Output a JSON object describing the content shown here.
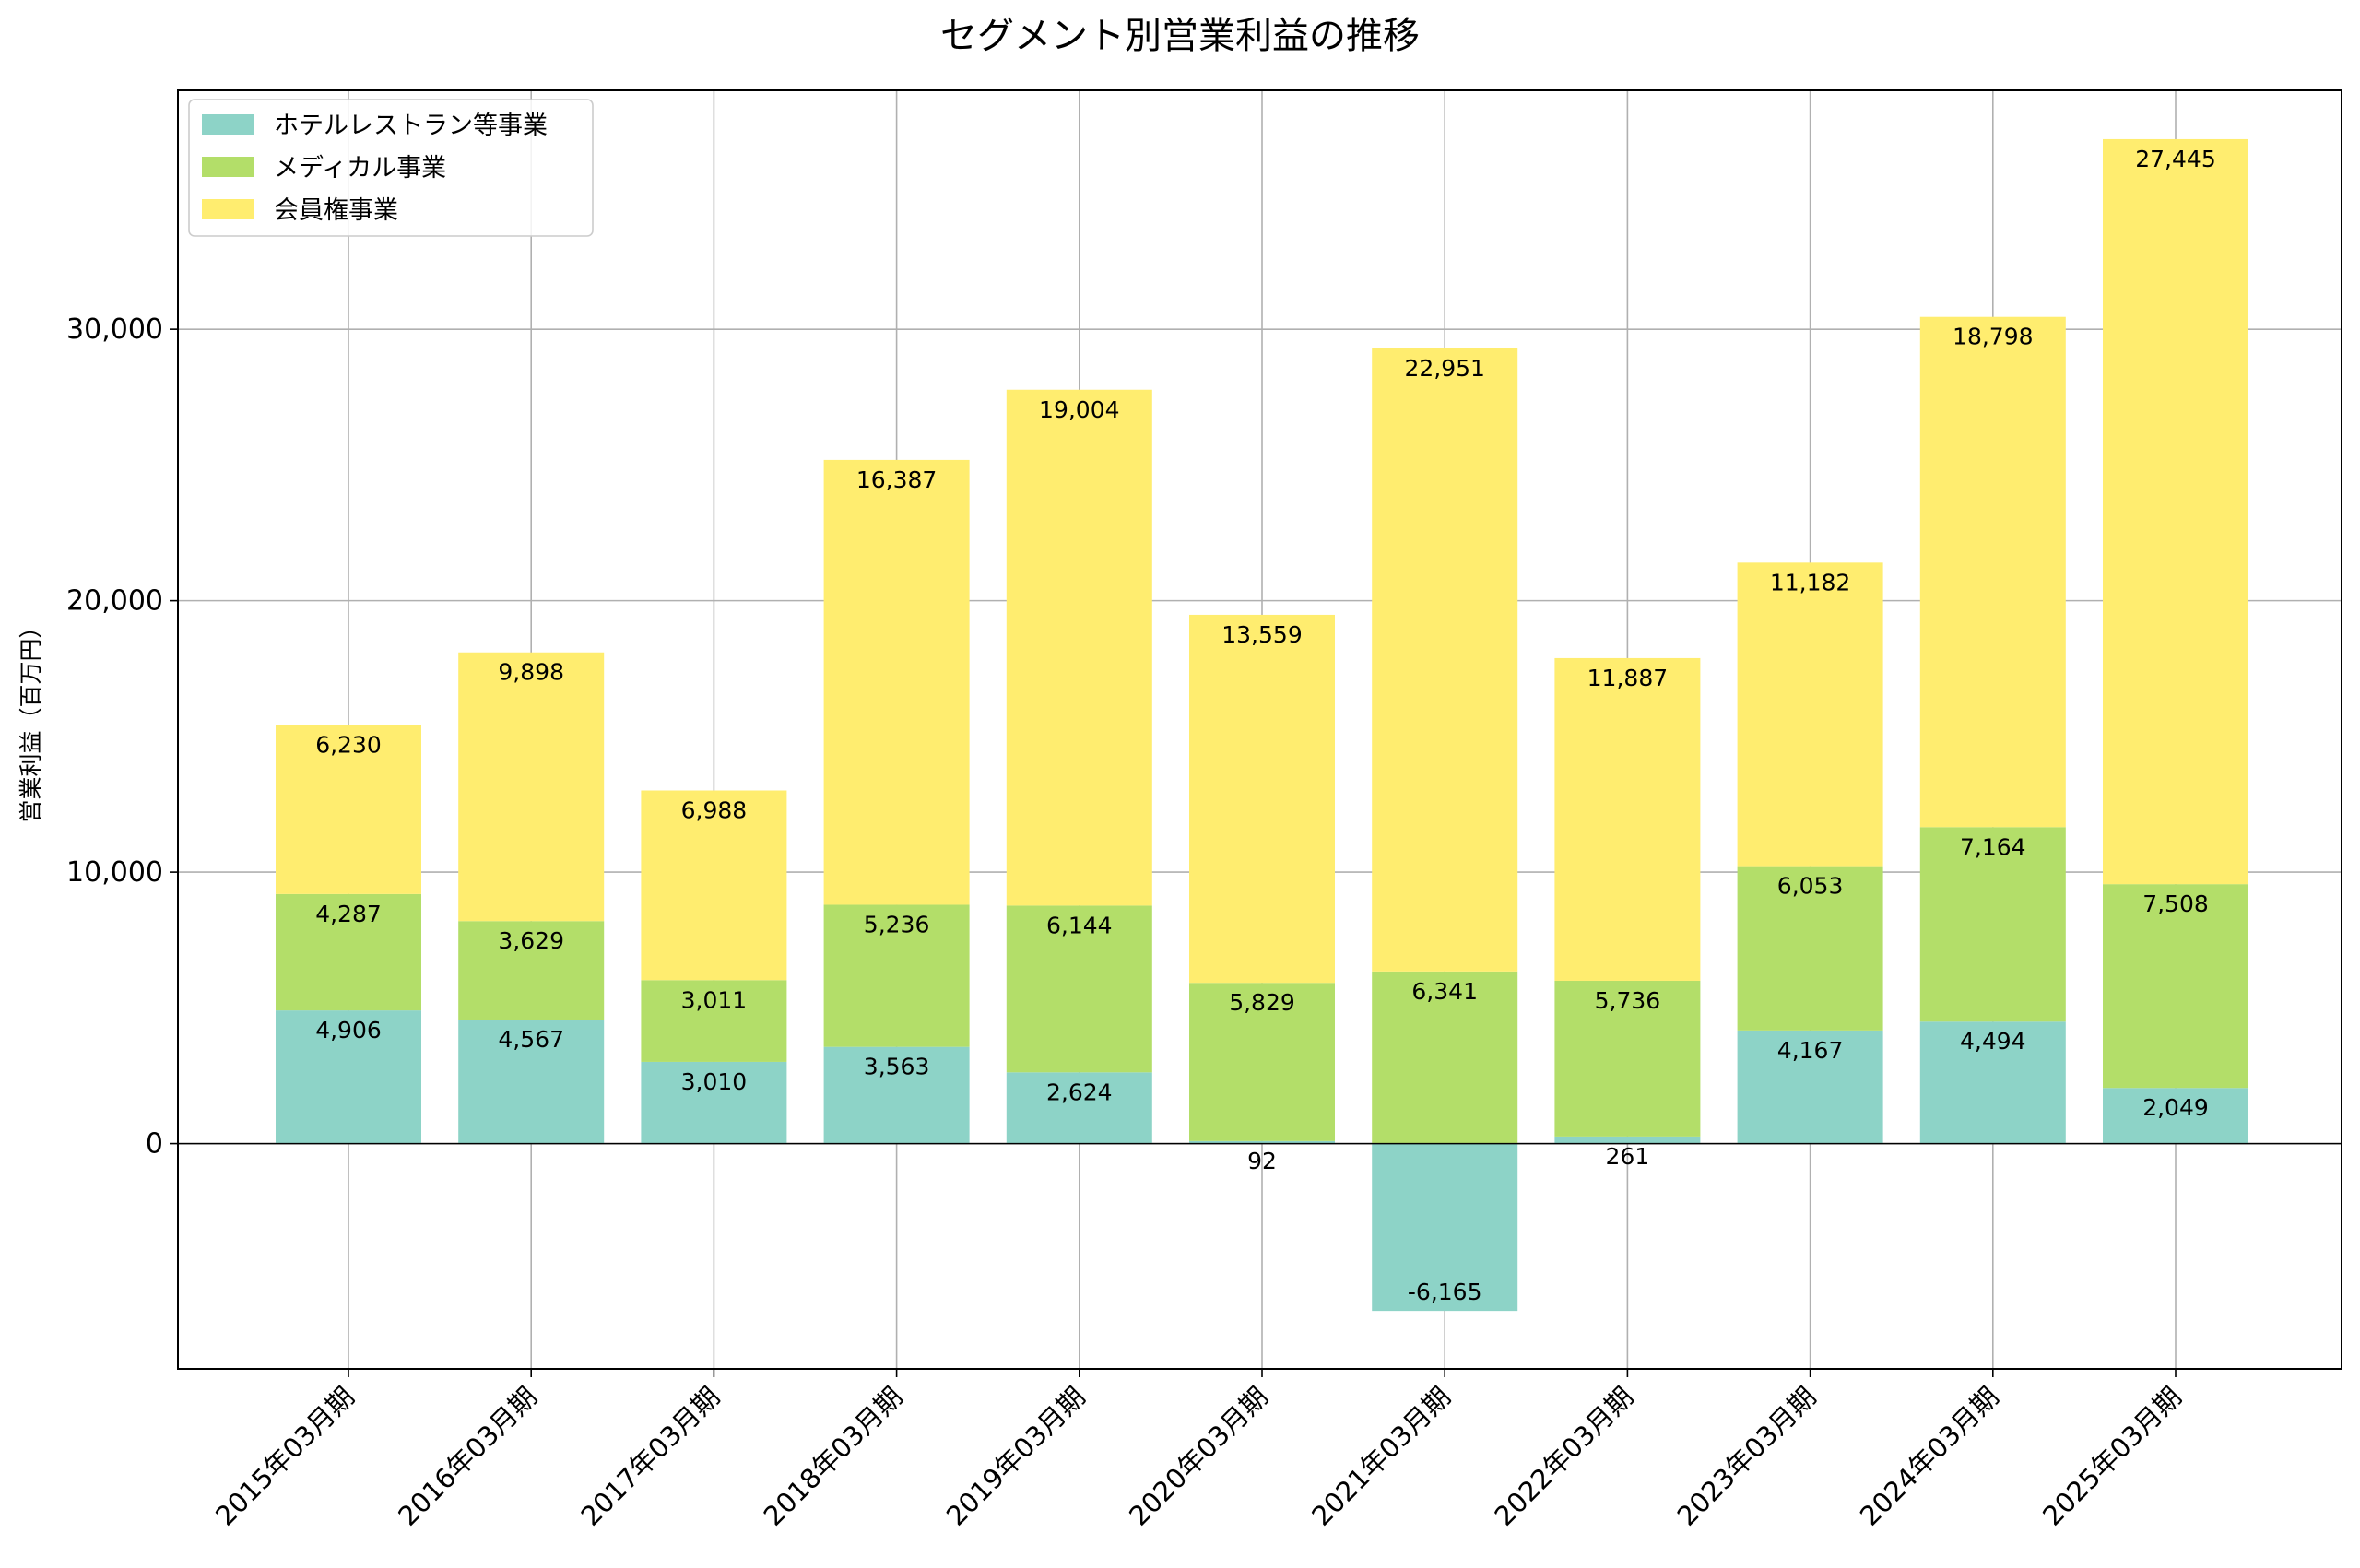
{
  "chart_data": {
    "type": "bar",
    "stacked": true,
    "title": "セグメント別営業利益の推移",
    "xlabel": "",
    "ylabel": "営業利益（百万円）",
    "categories": [
      "2015年03月期",
      "2016年03月期",
      "2017年03月期",
      "2018年03月期",
      "2019年03月期",
      "2020年03月期",
      "2021年03月期",
      "2022年03月期",
      "2023年03月期",
      "2024年03月期",
      "2025年03月期"
    ],
    "series": [
      {
        "name": "ホテルレストラン等事業",
        "color": "#8dd3c7",
        "values": [
          4906,
          4567,
          3010,
          3563,
          2624,
          92,
          -6165,
          261,
          4167,
          4494,
          2049
        ]
      },
      {
        "name": "メディカル事業",
        "color": "#b3de69",
        "values": [
          4287,
          3629,
          3011,
          5236,
          6144,
          5829,
          6341,
          5736,
          6053,
          7164,
          7508
        ]
      },
      {
        "name": "会員権事業",
        "color": "#ffed6f",
        "values": [
          6230,
          9898,
          6988,
          16387,
          19004,
          13559,
          22951,
          11887,
          11182,
          18798,
          27445
        ]
      }
    ],
    "yticks": [
      0,
      10000,
      20000,
      30000
    ],
    "ytick_labels": [
      "0",
      "10,000",
      "20,000",
      "30,000"
    ],
    "ylim": [
      -8300,
      38800
    ],
    "grid": true,
    "legend": "top-left"
  }
}
